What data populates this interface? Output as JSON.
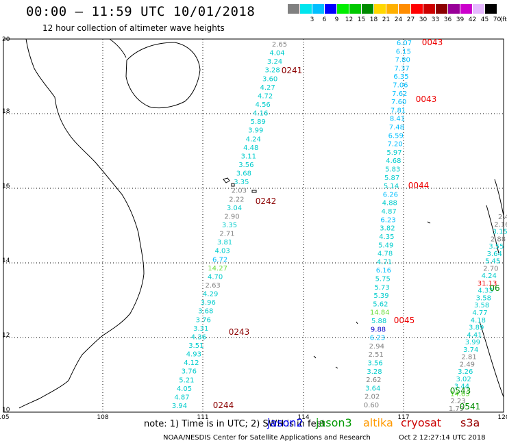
{
  "header": {
    "title": "00:00 – 11:59 UTC 10/01/2018",
    "subtitle": "12 hour collection of altimeter wave heights"
  },
  "color_scale": {
    "unit": "(ft)",
    "entries": [
      {
        "label": "",
        "color": "#808080"
      },
      {
        "label": "3",
        "color": "#00e5ee"
      },
      {
        "label": "6",
        "color": "#00bfff"
      },
      {
        "label": "9",
        "color": "#0000ff"
      },
      {
        "label": "12",
        "color": "#00ee00"
      },
      {
        "label": "15",
        "color": "#00c800"
      },
      {
        "label": "18",
        "color": "#008b00"
      },
      {
        "label": "21",
        "color": "#ffd700"
      },
      {
        "label": "24",
        "color": "#ffb000"
      },
      {
        "label": "27",
        "color": "#ff8c00"
      },
      {
        "label": "30",
        "color": "#ff0000"
      },
      {
        "label": "33",
        "color": "#cd0000"
      },
      {
        "label": "36",
        "color": "#8b0000"
      },
      {
        "label": "39",
        "color": "#990099"
      },
      {
        "label": "42",
        "color": "#cc00cc"
      },
      {
        "label": "45",
        "color": "#e6b8ff"
      },
      {
        "label": "70",
        "color": "#000000"
      }
    ]
  },
  "axes": {
    "lon_ticks": [
      "105",
      "108",
      "111",
      "114",
      "117",
      "120"
    ],
    "lat_ticks": [
      "20",
      "18",
      "16",
      "14",
      "12",
      "10"
    ]
  },
  "tracks": [
    {
      "times": [
        {
          "label": "0241",
          "color": "#8b0000"
        },
        {
          "label": "0242",
          "color": "#8b0000"
        },
        {
          "label": "0243",
          "color": "#8b0000"
        },
        {
          "label": "0244",
          "color": "#8b0000"
        }
      ],
      "values": [
        {
          "v": "2.65",
          "c": "#808080"
        },
        {
          "v": "4.04",
          "c": "#00cccc"
        },
        {
          "v": "3.24",
          "c": "#00cccc"
        },
        {
          "v": "3.28",
          "c": "#00cccc"
        },
        {
          "v": "3.60",
          "c": "#00cccc"
        },
        {
          "v": "4.27",
          "c": "#00cccc"
        },
        {
          "v": "4.72",
          "c": "#00cccc"
        },
        {
          "v": "4.56",
          "c": "#00cccc"
        },
        {
          "v": "4.16",
          "c": "#00cccc"
        },
        {
          "v": "5.89",
          "c": "#00cccc"
        },
        {
          "v": "3.99",
          "c": "#00cccc"
        },
        {
          "v": "4.24",
          "c": "#00cccc"
        },
        {
          "v": "4.48",
          "c": "#00cccc"
        },
        {
          "v": "3.11",
          "c": "#00cccc"
        },
        {
          "v": "3.56",
          "c": "#00cccc"
        },
        {
          "v": "3.68",
          "c": "#00cccc"
        },
        {
          "v": "3.35",
          "c": "#00cccc"
        },
        {
          "v": "2.03",
          "c": "#808080"
        },
        {
          "v": "2.22",
          "c": "#808080"
        },
        {
          "v": "3.04",
          "c": "#00cccc"
        },
        {
          "v": "2.90",
          "c": "#808080"
        },
        {
          "v": "3.35",
          "c": "#00cccc"
        },
        {
          "v": "2.71",
          "c": "#808080"
        },
        {
          "v": "3.81",
          "c": "#00cccc"
        },
        {
          "v": "4.03",
          "c": "#00cccc"
        },
        {
          "v": "6.72",
          "c": "#00bfff"
        },
        {
          "v": "14.27",
          "c": "#66dd33"
        },
        {
          "v": "4.70",
          "c": "#00cccc"
        },
        {
          "v": "2.63",
          "c": "#808080"
        },
        {
          "v": "4.29",
          "c": "#00cccc"
        },
        {
          "v": "3.96",
          "c": "#00cccc"
        },
        {
          "v": "3.68",
          "c": "#00cccc"
        },
        {
          "v": "3.76",
          "c": "#00cccc"
        },
        {
          "v": "3.31",
          "c": "#00cccc"
        },
        {
          "v": "4.36",
          "c": "#00cccc"
        },
        {
          "v": "3.51",
          "c": "#00cccc"
        },
        {
          "v": "4.93",
          "c": "#00cccc"
        },
        {
          "v": "4.12",
          "c": "#00cccc"
        },
        {
          "v": "3.76",
          "c": "#00cccc"
        },
        {
          "v": "5.21",
          "c": "#00cccc"
        },
        {
          "v": "4.05",
          "c": "#00cccc"
        },
        {
          "v": "4.87",
          "c": "#00cccc"
        },
        {
          "v": "3.94",
          "c": "#00cccc"
        }
      ]
    },
    {
      "times": [
        {
          "label": "0043",
          "color": "#ee0000"
        },
        {
          "label": "0043",
          "color": "#ee0000"
        },
        {
          "label": "0044",
          "color": "#ee0000"
        },
        {
          "label": "0045",
          "color": "#ee0000"
        }
      ],
      "values": [
        {
          "v": "6.07",
          "c": "#00bfff"
        },
        {
          "v": "6.15",
          "c": "#00bfff"
        },
        {
          "v": "7.80",
          "c": "#00bfff"
        },
        {
          "v": "7.37",
          "c": "#00bfff"
        },
        {
          "v": "6.35",
          "c": "#00bfff"
        },
        {
          "v": "7.06",
          "c": "#00bfff"
        },
        {
          "v": "7.62",
          "c": "#00bfff"
        },
        {
          "v": "7.60",
          "c": "#00bfff"
        },
        {
          "v": "7.81",
          "c": "#00bfff"
        },
        {
          "v": "8.41",
          "c": "#00bfff"
        },
        {
          "v": "7.48",
          "c": "#00bfff"
        },
        {
          "v": "6.59",
          "c": "#00bfff"
        },
        {
          "v": "7.20",
          "c": "#00bfff"
        },
        {
          "v": "5.97",
          "c": "#00cccc"
        },
        {
          "v": "4.68",
          "c": "#00cccc"
        },
        {
          "v": "5.83",
          "c": "#00cccc"
        },
        {
          "v": "5.87",
          "c": "#00cccc"
        },
        {
          "v": "5.14",
          "c": "#00cccc"
        },
        {
          "v": "6.26",
          "c": "#00bfff"
        },
        {
          "v": "4.88",
          "c": "#00cccc"
        },
        {
          "v": "4.87",
          "c": "#00cccc"
        },
        {
          "v": "6.23",
          "c": "#00bfff"
        },
        {
          "v": "3.82",
          "c": "#00cccc"
        },
        {
          "v": "4.35",
          "c": "#00cccc"
        },
        {
          "v": "5.49",
          "c": "#00cccc"
        },
        {
          "v": "4.78",
          "c": "#00cccc"
        },
        {
          "v": "4.71",
          "c": "#00cccc"
        },
        {
          "v": "6.16",
          "c": "#00bfff"
        },
        {
          "v": "5.75",
          "c": "#00cccc"
        },
        {
          "v": "5.73",
          "c": "#00cccc"
        },
        {
          "v": "5.39",
          "c": "#00cccc"
        },
        {
          "v": "5.62",
          "c": "#00cccc"
        },
        {
          "v": "14.84",
          "c": "#66dd33"
        },
        {
          "v": "5.88",
          "c": "#00cccc"
        },
        {
          "v": "9.88",
          "c": "#0000cc"
        },
        {
          "v": "6.23",
          "c": "#00bfff"
        },
        {
          "v": "2.94",
          "c": "#808080"
        },
        {
          "v": "2.51",
          "c": "#808080"
        },
        {
          "v": "3.56",
          "c": "#00cccc"
        },
        {
          "v": "3.28",
          "c": "#00cccc"
        },
        {
          "v": "2.62",
          "c": "#808080"
        },
        {
          "v": "3.64",
          "c": "#00cccc"
        },
        {
          "v": "2.02",
          "c": "#808080"
        },
        {
          "v": "0.60",
          "c": "#808080"
        }
      ]
    },
    {
      "times": [
        {
          "label": "06",
          "color": "#008b00"
        },
        {
          "label": "0543",
          "color": "#008b00"
        },
        {
          "label": "0541",
          "color": "#008b00"
        }
      ],
      "values": [
        {
          "v": "2.4",
          "c": "#808080"
        },
        {
          "v": "2.16",
          "c": "#808080"
        },
        {
          "v": "3.15",
          "c": "#00cccc"
        },
        {
          "v": "2.88",
          "c": "#808080"
        },
        {
          "v": "3.55",
          "c": "#00cccc"
        },
        {
          "v": "3.64",
          "c": "#00cccc"
        },
        {
          "v": "5.45",
          "c": "#00cccc"
        },
        {
          "v": "2.70",
          "c": "#808080"
        },
        {
          "v": "4.24",
          "c": "#00cccc"
        },
        {
          "v": "31.13",
          "c": "#ee0000"
        },
        {
          "v": "4.33",
          "c": "#00cccc"
        },
        {
          "v": "3.58",
          "c": "#00cccc"
        },
        {
          "v": "3.58",
          "c": "#00cccc"
        },
        {
          "v": "4.77",
          "c": "#00cccc"
        },
        {
          "v": "4.18",
          "c": "#00cccc"
        },
        {
          "v": "3.89",
          "c": "#00cccc"
        },
        {
          "v": "4.41",
          "c": "#00cccc"
        },
        {
          "v": "3.99",
          "c": "#00cccc"
        },
        {
          "v": "3.74",
          "c": "#00cccc"
        },
        {
          "v": "2.81",
          "c": "#808080"
        },
        {
          "v": "2.49",
          "c": "#808080"
        },
        {
          "v": "3.26",
          "c": "#00cccc"
        },
        {
          "v": "3.02",
          "c": "#00cccc"
        },
        {
          "v": "3.44",
          "c": "#00cccc"
        },
        {
          "v": "14.63",
          "c": "#66dd33"
        },
        {
          "v": "2.23",
          "c": "#808080"
        },
        {
          "v": "1.79",
          "c": "#808080"
        }
      ]
    }
  ],
  "footer": {
    "note": "note: 1) Time is in UTC; 2) SWH is in feet",
    "legend": [
      {
        "name": "jason2",
        "color": "#0000ee"
      },
      {
        "name": "jason3",
        "color": "#009900"
      },
      {
        "name": "altika",
        "color": "#ff9900"
      },
      {
        "name": "cryosat",
        "color": "#cc0000"
      },
      {
        "name": "s3a",
        "color": "#990000"
      }
    ],
    "credit": "NOAA/NESDIS Center for Satellite Applications and Research",
    "timestamp": "Oct  2 12:27:14 UTC 2018"
  }
}
